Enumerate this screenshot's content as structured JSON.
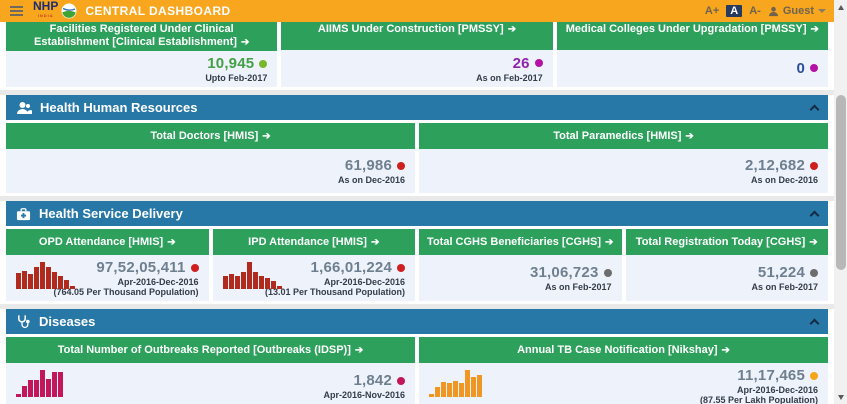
{
  "theme": {
    "header_bg": "#f8a61d",
    "section_bar_bg": "#2878a7",
    "card_head_bg": "#2da15c",
    "card_body_bg": "#eef2fb"
  },
  "header": {
    "brand": "NHP",
    "brand_sub": "INDIA",
    "title": "CENTRAL DASHBOARD",
    "font_controls": [
      "A+",
      "A",
      "A-"
    ],
    "user_label": "Guest"
  },
  "top_row": [
    {
      "title": "Facilities Registered Under Clinical Establishment [Clinical Establishment]",
      "value": "10,945",
      "date": "Upto Feb-2017",
      "value_color": "#43a047",
      "dot_color": "#76b82a"
    },
    {
      "title": "AIIMS Under Construction [PMSSY]",
      "value": "26",
      "date": "As on Feb-2017",
      "value_color": "#8e24aa",
      "dot_color": "#b512a5"
    },
    {
      "title": "Medical Colleges Under Upgradation [PMSSY]",
      "value": "0",
      "date": "",
      "value_color": "#2c4f9e",
      "dot_color": "#b512a5"
    }
  ],
  "sections": [
    {
      "title": "Health Human Resources",
      "icon": "people-icon",
      "cards": [
        {
          "title": "Total Doctors [HMIS]",
          "value": "61,986",
          "date": "As on Dec-2016",
          "value_color": "#6e7f8f",
          "dot_color": "#cf2020"
        },
        {
          "title": "Total Paramedics [HMIS]",
          "value": "2,12,682",
          "date": "As on Dec-2016",
          "value_color": "#6e7f8f",
          "dot_color": "#cf2020"
        }
      ]
    },
    {
      "title": "Health Service Delivery",
      "icon": "medical-bag-icon",
      "cards": [
        {
          "title": "OPD Attendance [HMIS]",
          "value": "97,52,05,411",
          "date": "Apr-2016-Dec-2016",
          "note": "(764.05 Per Thousand Population)",
          "value_color": "#6e7f8f",
          "dot_color": "#cf2020",
          "chart": {
            "type": "bar",
            "color": "#b02a1e",
            "bars": [
              58,
              65,
              52,
              80,
              98,
              80,
              60,
              45,
              33,
              12
            ]
          }
        },
        {
          "title": "IPD Attendance [HMIS]",
          "value": "1,66,01,224",
          "date": "Apr-2016-Dec-2016",
          "note": "(13.01 Per Thousand Population)",
          "value_color": "#6e7f8f",
          "dot_color": "#cf2020",
          "chart": {
            "type": "bar",
            "color": "#b02a1e",
            "bars": [
              45,
              52,
              48,
              60,
              95,
              62,
              48,
              38,
              28,
              10
            ]
          }
        },
        {
          "title": "Total CGHS Beneficiaries [CGHS]",
          "value": "31,06,723",
          "date": "As on Feb-2017",
          "value_color": "#6e7f8f",
          "dot_color": "#6d6d6d"
        },
        {
          "title": "Total Registration Today [CGHS]",
          "value": "51,224",
          "date": "As on Feb-2017",
          "value_color": "#6e7f8f",
          "dot_color": "#6d6d6d"
        }
      ]
    },
    {
      "title": "Diseases",
      "icon": "stethoscope-icon",
      "cards": [
        {
          "title": "Total Number of Outbreaks Reported [Outbreaks (IDSP)]",
          "value": "1,842",
          "date": "Apr-2016-Nov-2016",
          "value_color": "#6e7f8f",
          "dot_color": "#c2185b",
          "chart": {
            "type": "bar",
            "color": "#c2185b",
            "bars": [
              10,
              40,
              62,
              60,
              95,
              65,
              90,
              88
            ]
          }
        },
        {
          "title": "Annual TB Case Notification [Nikshay]",
          "value": "11,17,465",
          "date": "Apr-2016-Dec-2016",
          "note": "(87.55 Per Lakh Population)",
          "value_color": "#6e7f8f",
          "dot_color": "#f5a61d",
          "chart": {
            "type": "bar",
            "color": "#ef9722",
            "bars": [
              10,
              36,
              52,
              50,
              58,
              50,
              95,
              72,
              80
            ]
          }
        }
      ]
    }
  ]
}
